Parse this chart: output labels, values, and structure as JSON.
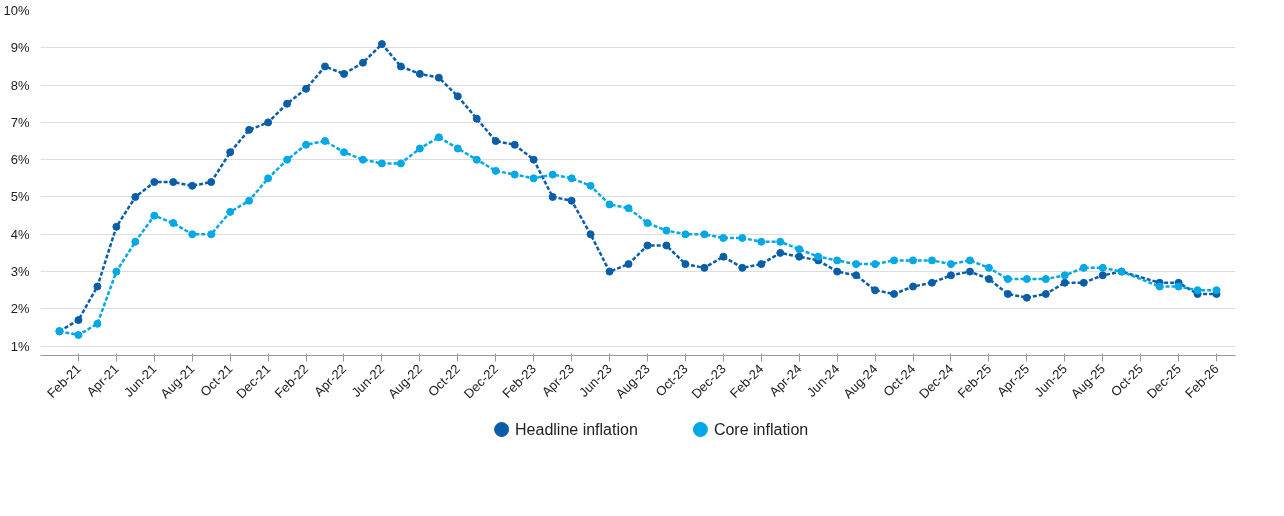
{
  "chart_data": {
    "type": "line",
    "marker": "circle",
    "line_style": "dashed",
    "grid": "y",
    "legend": "bottom",
    "x": [
      "2021-01",
      "2021-02",
      "2021-03",
      "2021-04",
      "2021-05",
      "2021-06",
      "2021-07",
      "2021-08",
      "2021-09",
      "2021-10",
      "2021-11",
      "2021-12",
      "2022-01",
      "2022-02",
      "2022-03",
      "2022-04",
      "2022-05",
      "2022-06",
      "2022-07",
      "2022-08",
      "2022-09",
      "2022-10",
      "2022-11",
      "2022-12",
      "2023-01",
      "2023-02",
      "2023-03",
      "2023-04",
      "2023-05",
      "2023-06",
      "2023-07",
      "2023-08",
      "2023-09",
      "2023-10",
      "2023-11",
      "2023-12",
      "2024-01",
      "2024-02",
      "2024-03",
      "2024-04",
      "2024-05",
      "2024-06",
      "2024-07",
      "2024-08",
      "2024-09",
      "2024-10",
      "2024-11",
      "2024-12",
      "2025-01",
      "2025-02",
      "2025-03",
      "2025-04",
      "2025-05",
      "2025-06",
      "2025-07",
      "2025-08",
      "2025-09",
      "2025-11",
      "2025-12",
      "2026-01",
      "2026-02"
    ],
    "series": [
      {
        "name": "Headline inflation",
        "color": "#0a5ea8",
        "values": [
          1.4,
          1.7,
          2.6,
          4.2,
          5.0,
          5.4,
          5.4,
          5.3,
          5.4,
          6.2,
          6.8,
          7.0,
          7.5,
          7.9,
          8.5,
          8.3,
          8.6,
          9.1,
          8.5,
          8.3,
          8.2,
          7.7,
          7.1,
          6.5,
          6.4,
          6.0,
          5.0,
          4.9,
          4.0,
          3.0,
          3.2,
          3.7,
          3.7,
          3.2,
          3.1,
          3.4,
          3.1,
          3.2,
          3.5,
          3.4,
          3.3,
          3.0,
          2.9,
          2.5,
          2.4,
          2.6,
          2.7,
          2.9,
          3.0,
          2.8,
          2.4,
          2.3,
          2.4,
          2.7,
          2.7,
          2.9,
          3.0,
          2.7,
          2.7,
          2.4,
          2.4
        ]
      },
      {
        "name": "Core inflation",
        "color": "#00a8e6",
        "values": [
          1.4,
          1.3,
          1.6,
          3.0,
          3.8,
          4.5,
          4.3,
          4.0,
          4.0,
          4.6,
          4.9,
          5.5,
          6.0,
          6.4,
          6.5,
          6.2,
          6.0,
          5.9,
          5.9,
          6.3,
          6.6,
          6.3,
          6.0,
          5.7,
          5.6,
          5.5,
          5.6,
          5.5,
          5.3,
          4.8,
          4.7,
          4.3,
          4.1,
          4.0,
          4.0,
          3.9,
          3.9,
          3.8,
          3.8,
          3.6,
          3.4,
          3.3,
          3.2,
          3.2,
          3.3,
          3.3,
          3.3,
          3.2,
          3.3,
          3.1,
          2.8,
          2.8,
          2.8,
          2.9,
          3.1,
          3.1,
          3.0,
          2.6,
          2.6,
          2.5,
          2.5
        ]
      }
    ],
    "xlim": [
      "2020-12",
      "2026-03"
    ],
    "xticks": [
      {
        "value": "2021-02",
        "label": "Feb-21"
      },
      {
        "value": "2021-04",
        "label": "Apr-21"
      },
      {
        "value": "2021-06",
        "label": "Jun-21"
      },
      {
        "value": "2021-08",
        "label": "Aug-21"
      },
      {
        "value": "2021-10",
        "label": "Oct-21"
      },
      {
        "value": "2021-12",
        "label": "Dec-21"
      },
      {
        "value": "2022-02",
        "label": "Feb-22"
      },
      {
        "value": "2022-04",
        "label": "Apr-22"
      },
      {
        "value": "2022-06",
        "label": "Jun-22"
      },
      {
        "value": "2022-08",
        "label": "Aug-22"
      },
      {
        "value": "2022-10",
        "label": "Oct-22"
      },
      {
        "value": "2022-12",
        "label": "Dec-22"
      },
      {
        "value": "2023-02",
        "label": "Feb-23"
      },
      {
        "value": "2023-04",
        "label": "Apr-23"
      },
      {
        "value": "2023-06",
        "label": "Jun-23"
      },
      {
        "value": "2023-08",
        "label": "Aug-23"
      },
      {
        "value": "2023-10",
        "label": "Oct-23"
      },
      {
        "value": "2023-12",
        "label": "Dec-23"
      },
      {
        "value": "2024-02",
        "label": "Feb-24"
      },
      {
        "value": "2024-04",
        "label": "Apr-24"
      },
      {
        "value": "2024-06",
        "label": "Jun-24"
      },
      {
        "value": "2024-08",
        "label": "Aug-24"
      },
      {
        "value": "2024-10",
        "label": "Oct-24"
      },
      {
        "value": "2024-12",
        "label": "Dec-24"
      },
      {
        "value": "2025-02",
        "label": "Feb-25"
      },
      {
        "value": "2025-04",
        "label": "Apr-25"
      },
      {
        "value": "2025-06",
        "label": "Jun-25"
      },
      {
        "value": "2025-08",
        "label": "Aug-25"
      },
      {
        "value": "2025-10",
        "label": "Oct-25"
      },
      {
        "value": "2025-12",
        "label": "Dec-25"
      },
      {
        "value": "2026-02",
        "label": "Feb-26"
      }
    ],
    "ylim": [
      0.75,
      10
    ],
    "yticks": [
      {
        "value": 1,
        "label": "1%"
      },
      {
        "value": 2,
        "label": "2%"
      },
      {
        "value": 3,
        "label": "3%"
      },
      {
        "value": 4,
        "label": "4%"
      },
      {
        "value": 5,
        "label": "5%"
      },
      {
        "value": 6,
        "label": "6%"
      },
      {
        "value": 7,
        "label": "7%"
      },
      {
        "value": 8,
        "label": "8%"
      },
      {
        "value": 9,
        "label": "9%"
      },
      {
        "value": 10,
        "label": "10%"
      }
    ]
  }
}
